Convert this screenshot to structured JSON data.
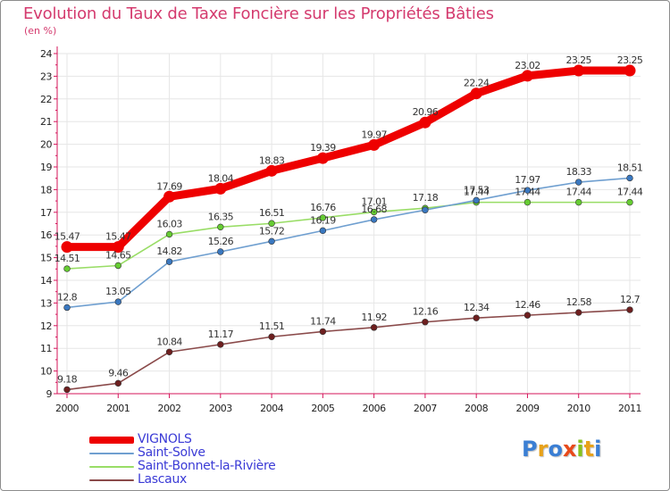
{
  "title": "Evolution du Taux de Taxe Foncière sur les Propriétés Bâties",
  "subtitle": "(en %)",
  "brand": "Proxiti",
  "colors": {
    "title": "#d43a6e",
    "axis": "#d4145a",
    "grid": "#e6e6e6",
    "legend_text": "#3b3bd6"
  },
  "chart_data": {
    "type": "line",
    "title": "Evolution du Taux de Taxe Foncière sur les Propriétés Bâties",
    "ylabel": "(en %)",
    "xlabel": "",
    "ylim": [
      9,
      24
    ],
    "yticks": [
      "9",
      "10",
      "11",
      "12",
      "13",
      "14",
      "15",
      "16",
      "17",
      "18",
      "19",
      "20",
      "21",
      "22",
      "23",
      "24"
    ],
    "categories": [
      "2000",
      "2001",
      "2002",
      "2003",
      "2004",
      "2005",
      "2006",
      "2007",
      "2008",
      "2009",
      "2010",
      "2011"
    ],
    "grid": true,
    "legend_position": "bottom-left",
    "series": [
      {
        "name": "VIGNOLS",
        "color": "#ee0000",
        "emphasis": true,
        "values": [
          15.47,
          15.47,
          17.69,
          18.04,
          18.83,
          19.39,
          19.97,
          20.96,
          22.24,
          23.02,
          23.25,
          23.25
        ],
        "labels": [
          "15.47",
          "15.47",
          "17.69",
          "18.04",
          "18.83",
          "19.39",
          "19.97",
          "20.96",
          "22.24",
          "23.02",
          "23.25",
          "23.25"
        ]
      },
      {
        "name": "Saint-Solve",
        "color": "#6f9fd0",
        "point_color": "#3a78c0",
        "values": [
          12.8,
          13.05,
          14.82,
          15.26,
          15.72,
          16.19,
          16.68,
          17.1,
          17.53,
          17.97,
          18.33,
          18.51
        ],
        "labels": [
          "12.8",
          "13.05",
          "14.82",
          "15.26",
          "15.72",
          "16.19",
          "16.68",
          "",
          "17.53",
          "17.97",
          "18.33",
          "18.51"
        ]
      },
      {
        "name": "Saint-Bonnet-la-Rivière",
        "color": "#99dd66",
        "point_color": "#66cc33",
        "values": [
          14.51,
          14.65,
          16.03,
          16.35,
          16.51,
          16.76,
          17.01,
          17.18,
          17.44,
          17.44,
          17.44,
          17.44
        ],
        "labels": [
          "14.51",
          "14.65",
          "16.03",
          "16.35",
          "16.51",
          "16.76",
          "17.01",
          "17.18",
          "17.44",
          "17.44",
          "17.44",
          "17.44"
        ]
      },
      {
        "name": "Lascaux",
        "color": "#8a4a4a",
        "point_color": "#6e1f1f",
        "values": [
          9.18,
          9.46,
          10.84,
          11.17,
          11.51,
          11.74,
          11.92,
          12.16,
          12.34,
          12.46,
          12.58,
          12.7
        ],
        "labels": [
          "9.18",
          "9.46",
          "10.84",
          "11.17",
          "11.51",
          "11.74",
          "11.92",
          "12.16",
          "12.34",
          "12.46",
          "12.58",
          "12.7"
        ]
      }
    ]
  }
}
